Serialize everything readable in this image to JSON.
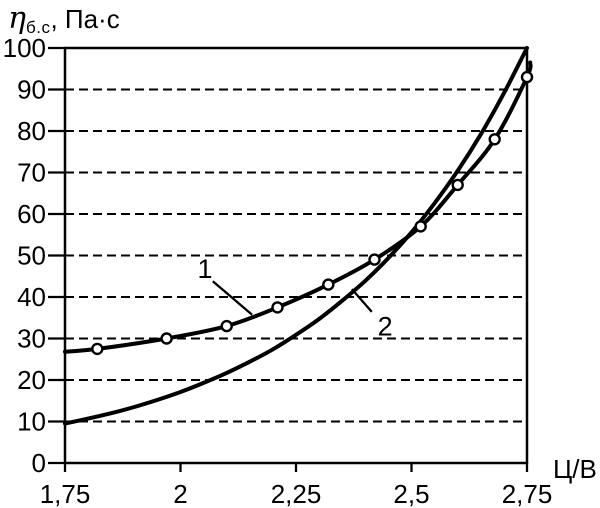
{
  "chart_data": {
    "type": "line",
    "title": "",
    "xlabel": "Ц/В",
    "ylabel": "ηб.с, Па·с",
    "ylabel_parts": {
      "symbol": "η",
      "subscript": "б.с",
      "rest": ", Па·с"
    },
    "xlim": [
      1.75,
      2.75
    ],
    "ylim": [
      0,
      100
    ],
    "grid": "horizontal-dashed",
    "legend": "none",
    "x_ticks": [
      {
        "value": 1.75,
        "label": "1,75"
      },
      {
        "value": 2.0,
        "label": "2"
      },
      {
        "value": 2.25,
        "label": "2,25"
      },
      {
        "value": 2.5,
        "label": "2,5"
      },
      {
        "value": 2.75,
        "label": "2,75"
      }
    ],
    "y_ticks": [
      {
        "value": 0,
        "label": "0"
      },
      {
        "value": 10,
        "label": "10"
      },
      {
        "value": 20,
        "label": "20"
      },
      {
        "value": 30,
        "label": "30"
      },
      {
        "value": 40,
        "label": "40"
      },
      {
        "value": 50,
        "label": "50"
      },
      {
        "value": 60,
        "label": "60"
      },
      {
        "value": 70,
        "label": "70"
      },
      {
        "value": 80,
        "label": "80"
      },
      {
        "value": 90,
        "label": "90"
      },
      {
        "value": 100,
        "label": "100"
      }
    ],
    "series": [
      {
        "name": "1",
        "marker": "circle",
        "marker_points": [
          [
            1.82,
            27.5
          ],
          [
            1.97,
            30
          ],
          [
            2.1,
            33
          ],
          [
            2.21,
            37.5
          ],
          [
            2.32,
            43
          ],
          [
            2.42,
            49
          ],
          [
            2.52,
            57
          ],
          [
            2.6,
            67
          ],
          [
            2.68,
            78
          ],
          [
            2.75,
            93
          ]
        ],
        "points": [
          [
            1.75,
            26.8
          ],
          [
            1.82,
            27.5
          ],
          [
            1.97,
            30
          ],
          [
            2.1,
            33
          ],
          [
            2.21,
            37.5
          ],
          [
            2.32,
            43
          ],
          [
            2.42,
            49
          ],
          [
            2.52,
            57
          ],
          [
            2.6,
            67
          ],
          [
            2.68,
            78
          ],
          [
            2.75,
            93
          ],
          [
            2.757,
            96.5
          ]
        ]
      },
      {
        "name": "2",
        "marker": "none",
        "marker_points": [],
        "points": [
          [
            1.75,
            9.5
          ],
          [
            1.8,
            10.7
          ],
          [
            1.85,
            12.0
          ],
          [
            1.9,
            13.5
          ],
          [
            1.95,
            15.2
          ],
          [
            2.0,
            17.1
          ],
          [
            2.05,
            19.3
          ],
          [
            2.1,
            21.7
          ],
          [
            2.15,
            24.4
          ],
          [
            2.2,
            27.4
          ],
          [
            2.25,
            30.9
          ],
          [
            2.3,
            34.7
          ],
          [
            2.35,
            39.1
          ],
          [
            2.4,
            43.9
          ],
          [
            2.45,
            49.4
          ],
          [
            2.5,
            55.6
          ],
          [
            2.55,
            62.6
          ],
          [
            2.6,
            70.4
          ],
          [
            2.65,
            79.2
          ],
          [
            2.7,
            89.1
          ],
          [
            2.75,
            100
          ]
        ]
      }
    ],
    "annotations": [
      {
        "text": "1",
        "text_pos": [
          2.053,
          46.7
        ],
        "leader": [
          [
            2.07,
            43.8
          ],
          [
            2.155,
            35.7
          ]
        ]
      },
      {
        "text": "2",
        "text_pos": [
          2.443,
          32.9
        ],
        "leader": [
          [
            2.414,
            36.4
          ],
          [
            2.371,
            41.9
          ]
        ]
      }
    ],
    "colors": {
      "curve": "#000000",
      "marker_fill": "#ffffff",
      "grid": "#000000",
      "background": "#ffffff"
    }
  }
}
